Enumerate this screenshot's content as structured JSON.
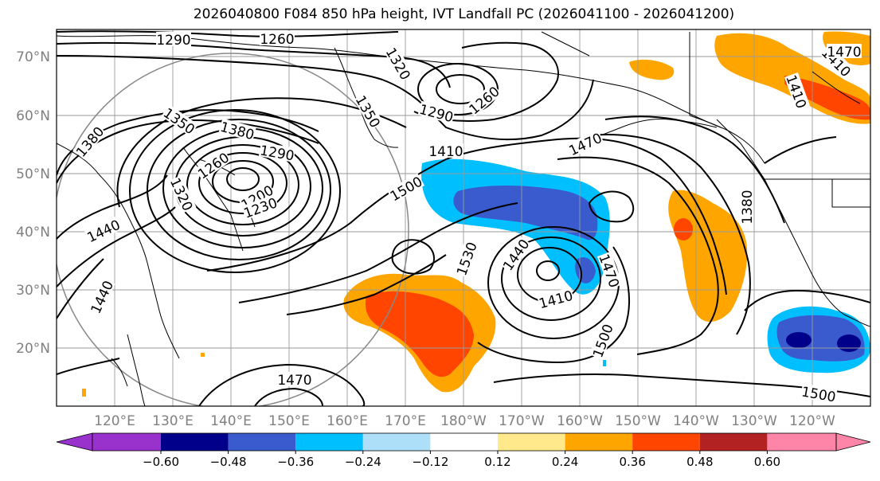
{
  "title": "2026040800 F084 850 hPa height, IVT Landfall PC (2026041100 - 2026041200)",
  "map": {
    "lat_labels": [
      "70°N",
      "60°N",
      "50°N",
      "40°N",
      "30°N",
      "20°N"
    ],
    "lon_labels": [
      "120°E",
      "130°E",
      "140°E",
      "150°E",
      "160°E",
      "170°E",
      "180°W",
      "170°W",
      "160°W",
      "150°W",
      "140°W",
      "130°W",
      "120°W"
    ],
    "contour_labels": [
      {
        "text": "1290"
      },
      {
        "text": "1260"
      },
      {
        "text": "1320"
      },
      {
        "text": "1290"
      },
      {
        "text": "1260"
      },
      {
        "text": "1380"
      },
      {
        "text": "1350"
      },
      {
        "text": "1350"
      },
      {
        "text": "1380"
      },
      {
        "text": "1290"
      },
      {
        "text": "1260"
      },
      {
        "text": "1200"
      },
      {
        "text": "1230"
      },
      {
        "text": "1320"
      },
      {
        "text": "1410"
      },
      {
        "text": "1470"
      },
      {
        "text": "1500"
      },
      {
        "text": "1440"
      },
      {
        "text": "1440"
      },
      {
        "text": "1530"
      },
      {
        "text": "1440"
      },
      {
        "text": "1410"
      },
      {
        "text": "1470"
      },
      {
        "text": "1380"
      },
      {
        "text": "1500"
      },
      {
        "text": "1470"
      },
      {
        "text": "1500"
      },
      {
        "text": "1410"
      },
      {
        "text": "1410"
      },
      {
        "text": "1470"
      }
    ]
  },
  "colorbar": {
    "ticks": [
      "−0.60",
      "−0.48",
      "−0.36",
      "−0.24",
      "−0.12",
      "0.12",
      "0.24",
      "0.36",
      "0.48",
      "0.60"
    ],
    "colors": [
      "#9932CC",
      "#00008B",
      "#3A5BCD",
      "#00BFFF",
      "#ADE0F8",
      "#FFFFFF",
      "#FFE98A",
      "#FFA500",
      "#FF4500",
      "#B22222",
      "#FF85A8"
    ]
  }
}
